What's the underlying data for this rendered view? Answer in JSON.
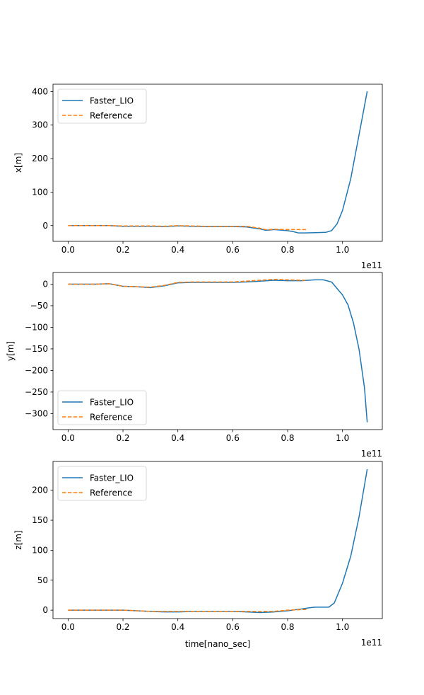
{
  "chart_data": [
    {
      "type": "line",
      "ylabel": "x[m]",
      "xlabel": "",
      "x_offset_label": "1e11",
      "xlim": [
        -0.055,
        1.145
      ],
      "ylim": [
        -47,
        422
      ],
      "xticks": [
        0.0,
        0.2,
        0.4,
        0.6,
        0.8,
        1.0
      ],
      "xtick_labels": [
        "0.0",
        "0.2",
        "0.4",
        "0.6",
        "0.8",
        "1.0"
      ],
      "yticks": [
        0,
        100,
        200,
        300,
        400
      ],
      "ytick_labels": [
        "0",
        "100",
        "200",
        "300",
        "400"
      ],
      "legend_position": "upper left",
      "series": [
        {
          "name": "Faster_LIO",
          "color": "#1f77b4",
          "dash": "solid",
          "x": [
            0.0,
            0.1,
            0.15,
            0.2,
            0.25,
            0.3,
            0.35,
            0.4,
            0.45,
            0.5,
            0.55,
            0.6,
            0.65,
            0.7,
            0.72,
            0.75,
            0.8,
            0.82,
            0.84,
            0.86,
            0.9,
            0.94,
            0.96,
            0.98,
            1.0,
            1.03,
            1.06,
            1.09
          ],
          "y": [
            0,
            0,
            0,
            -2,
            -2,
            -2,
            -3,
            -1,
            -2,
            -3,
            -3,
            -3,
            -4,
            -10,
            -14,
            -12,
            -15,
            -18,
            -22,
            -22,
            -21,
            -20,
            -15,
            5,
            45,
            140,
            270,
            401
          ]
        },
        {
          "name": "Reference",
          "color": "#ff7f0e",
          "dash": "dashed",
          "x": [
            0.0,
            0.1,
            0.15,
            0.2,
            0.25,
            0.3,
            0.35,
            0.4,
            0.45,
            0.5,
            0.55,
            0.6,
            0.65,
            0.7,
            0.72,
            0.75,
            0.8,
            0.84,
            0.87
          ],
          "y": [
            0,
            0,
            0,
            -1,
            -1,
            -1,
            -2,
            0,
            -1,
            -2,
            -2,
            -2,
            -2,
            -8,
            -12,
            -11,
            -12,
            -12,
            -12
          ]
        }
      ]
    },
    {
      "type": "line",
      "ylabel": "y[m]",
      "xlabel": "",
      "x_offset_label": "1e11",
      "xlim": [
        -0.055,
        1.145
      ],
      "ylim": [
        -337,
        27
      ],
      "xticks": [
        0.0,
        0.2,
        0.4,
        0.6,
        0.8,
        1.0
      ],
      "xtick_labels": [
        "0.0",
        "0.2",
        "0.4",
        "0.6",
        "0.8",
        "1.0"
      ],
      "yticks": [
        0,
        -50,
        -100,
        -150,
        -200,
        -250,
        -300
      ],
      "ytick_labels": [
        "0",
        "−50",
        "−100",
        "−150",
        "−200",
        "−250",
        "−300"
      ],
      "legend_position": "lower left",
      "series": [
        {
          "name": "Faster_LIO",
          "color": "#1f77b4",
          "dash": "solid",
          "x": [
            0.0,
            0.1,
            0.15,
            0.2,
            0.25,
            0.3,
            0.35,
            0.4,
            0.45,
            0.5,
            0.55,
            0.6,
            0.65,
            0.7,
            0.75,
            0.8,
            0.85,
            0.9,
            0.93,
            0.96,
            1.0,
            1.02,
            1.04,
            1.06,
            1.08,
            1.09
          ],
          "y": [
            0,
            0,
            1,
            -5,
            -6,
            -8,
            -4,
            3,
            4,
            4,
            4,
            4,
            5,
            7,
            9,
            8,
            8,
            10,
            10,
            5,
            -25,
            -48,
            -90,
            -150,
            -240,
            -320
          ]
        },
        {
          "name": "Reference",
          "color": "#ff7f0e",
          "dash": "dashed",
          "x": [
            0.0,
            0.1,
            0.15,
            0.2,
            0.25,
            0.3,
            0.35,
            0.4,
            0.45,
            0.5,
            0.55,
            0.6,
            0.65,
            0.7,
            0.75,
            0.8,
            0.85,
            0.87
          ],
          "y": [
            0,
            0,
            1,
            -5,
            -6,
            -7,
            -3,
            4,
            5,
            5,
            5,
            5,
            7,
            9,
            11,
            10,
            9,
            9
          ]
        }
      ]
    },
    {
      "type": "line",
      "ylabel": "z[m]",
      "xlabel": "time[nano_sec]",
      "x_offset_label": "1e11",
      "xlim": [
        -0.055,
        1.145
      ],
      "ylim": [
        -14,
        248
      ],
      "xticks": [
        0.0,
        0.2,
        0.4,
        0.6,
        0.8,
        1.0
      ],
      "xtick_labels": [
        "0.0",
        "0.2",
        "0.4",
        "0.6",
        "0.8",
        "1.0"
      ],
      "yticks": [
        0,
        50,
        100,
        150,
        200
      ],
      "ytick_labels": [
        "0",
        "50",
        "100",
        "150",
        "200"
      ],
      "legend_position": "upper left",
      "series": [
        {
          "name": "Faster_LIO",
          "color": "#1f77b4",
          "dash": "solid",
          "x": [
            0.0,
            0.1,
            0.2,
            0.25,
            0.3,
            0.35,
            0.4,
            0.45,
            0.5,
            0.55,
            0.6,
            0.65,
            0.7,
            0.75,
            0.8,
            0.85,
            0.88,
            0.9,
            0.95,
            0.97,
            1.0,
            1.03,
            1.06,
            1.09
          ],
          "y": [
            0,
            0,
            0,
            -1,
            -2,
            -3,
            -3,
            -2,
            -2,
            -2,
            -2,
            -3,
            -4,
            -3,
            -1,
            2,
            4,
            5,
            5,
            12,
            45,
            90,
            155,
            235
          ]
        },
        {
          "name": "Reference",
          "color": "#ff7f0e",
          "dash": "dashed",
          "x": [
            0.0,
            0.1,
            0.2,
            0.25,
            0.3,
            0.35,
            0.4,
            0.45,
            0.5,
            0.55,
            0.6,
            0.65,
            0.7,
            0.75,
            0.8,
            0.85,
            0.87
          ],
          "y": [
            0,
            0,
            0,
            -1,
            -2,
            -2,
            -2,
            -2,
            -2,
            -2,
            -2,
            -2,
            -2,
            -2,
            0,
            1,
            1
          ]
        }
      ]
    }
  ]
}
